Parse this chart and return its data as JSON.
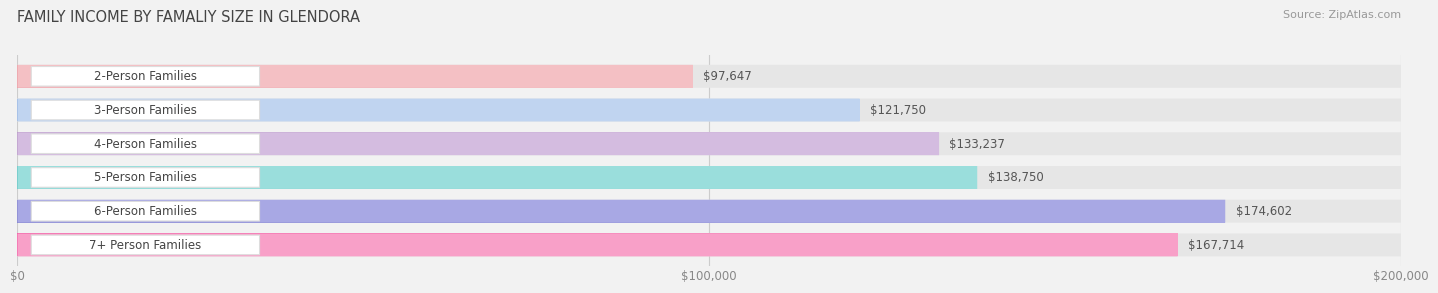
{
  "title": "FAMILY INCOME BY FAMALIY SIZE IN GLENDORA",
  "source": "Source: ZipAtlas.com",
  "categories": [
    "2-Person Families",
    "3-Person Families",
    "4-Person Families",
    "5-Person Families",
    "6-Person Families",
    "7+ Person Families"
  ],
  "values": [
    97647,
    121750,
    133237,
    138750,
    174602,
    167714
  ],
  "labels": [
    "$97,647",
    "$121,750",
    "$133,237",
    "$138,750",
    "$174,602",
    "$167,714"
  ],
  "bar_colors_dark": [
    "#E8909A",
    "#8AABDE",
    "#B090C0",
    "#55BABA",
    "#7878C8",
    "#F050A0"
  ],
  "bar_colors_light": [
    "#F4C0C4",
    "#C0D4F0",
    "#D4BCE0",
    "#9ADEDC",
    "#A8A8E4",
    "#F8A0C8"
  ],
  "xlim": [
    0,
    200000
  ],
  "xticks": [
    0,
    100000,
    200000
  ],
  "xticklabels": [
    "$0",
    "$100,000",
    "$200,000"
  ],
  "background_color": "#F2F2F2",
  "bar_bg_color": "#E6E6E6",
  "title_fontsize": 10.5,
  "source_fontsize": 8,
  "label_fontsize": 8.5,
  "value_fontsize": 8.5,
  "tick_fontsize": 8.5,
  "value_color": "#555555",
  "label_color": "#444444"
}
